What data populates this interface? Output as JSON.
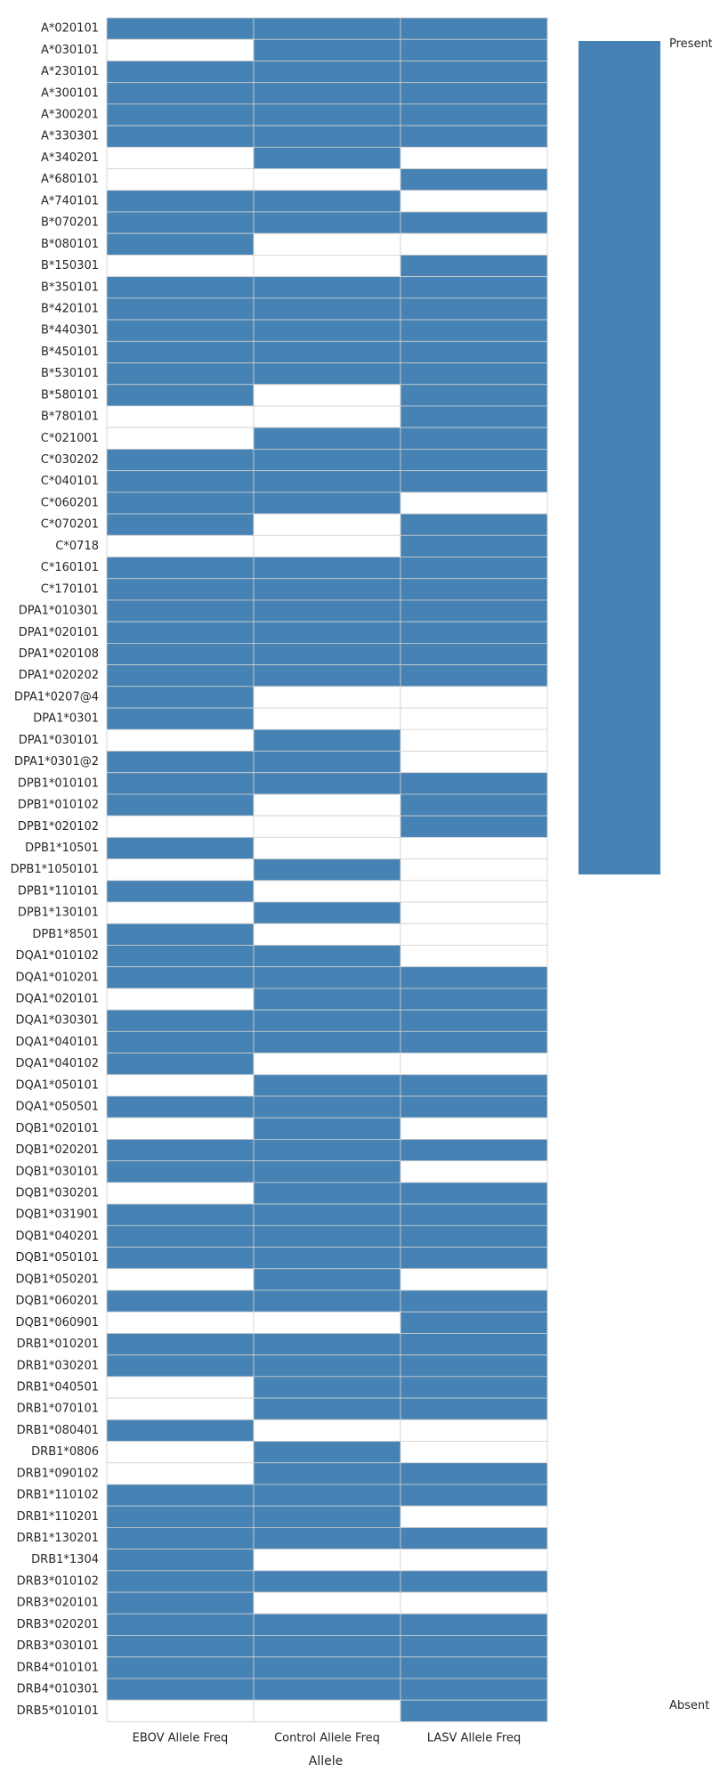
{
  "chart_data": {
    "type": "heatmap",
    "xlabel": "Allele",
    "columns": [
      "EBOV Allele Freq",
      "Control Allele Freq",
      "LASV Allele Freq"
    ],
    "legend": {
      "present_label": "Present",
      "absent_label": "Absent",
      "placement": "right"
    },
    "colors": {
      "present": "#4682b4",
      "absent": "#ffffff",
      "grid": "#d0d0d0"
    },
    "rows": [
      {
        "allele": "A*020101",
        "values": [
          1,
          1,
          1
        ]
      },
      {
        "allele": "A*030101",
        "values": [
          0,
          1,
          1
        ]
      },
      {
        "allele": "A*230101",
        "values": [
          1,
          1,
          1
        ]
      },
      {
        "allele": "A*300101",
        "values": [
          1,
          1,
          1
        ]
      },
      {
        "allele": "A*300201",
        "values": [
          1,
          1,
          1
        ]
      },
      {
        "allele": "A*330301",
        "values": [
          1,
          1,
          1
        ]
      },
      {
        "allele": "A*340201",
        "values": [
          0,
          1,
          0
        ]
      },
      {
        "allele": "A*680101",
        "values": [
          0,
          0,
          1
        ]
      },
      {
        "allele": "A*740101",
        "values": [
          1,
          1,
          0
        ]
      },
      {
        "allele": "B*070201",
        "values": [
          1,
          1,
          1
        ]
      },
      {
        "allele": "B*080101",
        "values": [
          1,
          0,
          0
        ]
      },
      {
        "allele": "B*150301",
        "values": [
          0,
          0,
          1
        ]
      },
      {
        "allele": "B*350101",
        "values": [
          1,
          1,
          1
        ]
      },
      {
        "allele": "B*420101",
        "values": [
          1,
          1,
          1
        ]
      },
      {
        "allele": "B*440301",
        "values": [
          1,
          1,
          1
        ]
      },
      {
        "allele": "B*450101",
        "values": [
          1,
          1,
          1
        ]
      },
      {
        "allele": "B*530101",
        "values": [
          1,
          1,
          1
        ]
      },
      {
        "allele": "B*580101",
        "values": [
          1,
          0,
          1
        ]
      },
      {
        "allele": "B*780101",
        "values": [
          0,
          0,
          1
        ]
      },
      {
        "allele": "C*021001",
        "values": [
          0,
          1,
          1
        ]
      },
      {
        "allele": "C*030202",
        "values": [
          1,
          1,
          1
        ]
      },
      {
        "allele": "C*040101",
        "values": [
          1,
          1,
          1
        ]
      },
      {
        "allele": "C*060201",
        "values": [
          1,
          1,
          0
        ]
      },
      {
        "allele": "C*070201",
        "values": [
          1,
          0,
          1
        ]
      },
      {
        "allele": "C*0718",
        "values": [
          0,
          0,
          1
        ]
      },
      {
        "allele": "C*160101",
        "values": [
          1,
          1,
          1
        ]
      },
      {
        "allele": "C*170101",
        "values": [
          1,
          1,
          1
        ]
      },
      {
        "allele": "DPA1*010301",
        "values": [
          1,
          1,
          1
        ]
      },
      {
        "allele": "DPA1*020101",
        "values": [
          1,
          1,
          1
        ]
      },
      {
        "allele": "DPA1*020108",
        "values": [
          1,
          1,
          1
        ]
      },
      {
        "allele": "DPA1*020202",
        "values": [
          1,
          1,
          1
        ]
      },
      {
        "allele": "DPA1*0207@4",
        "values": [
          1,
          0,
          0
        ]
      },
      {
        "allele": "DPA1*0301",
        "values": [
          1,
          0,
          0
        ]
      },
      {
        "allele": "DPA1*030101",
        "values": [
          0,
          1,
          0
        ]
      },
      {
        "allele": "DPA1*0301@2",
        "values": [
          1,
          1,
          0
        ]
      },
      {
        "allele": "DPB1*010101",
        "values": [
          1,
          1,
          1
        ]
      },
      {
        "allele": "DPB1*010102",
        "values": [
          1,
          0,
          1
        ]
      },
      {
        "allele": "DPB1*020102",
        "values": [
          0,
          0,
          1
        ]
      },
      {
        "allele": "DPB1*10501",
        "values": [
          1,
          0,
          0
        ]
      },
      {
        "allele": "DPB1*1050101",
        "values": [
          0,
          1,
          0
        ]
      },
      {
        "allele": "DPB1*110101",
        "values": [
          1,
          0,
          0
        ]
      },
      {
        "allele": "DPB1*130101",
        "values": [
          0,
          1,
          0
        ]
      },
      {
        "allele": "DPB1*8501",
        "values": [
          1,
          0,
          0
        ]
      },
      {
        "allele": "DQA1*010102",
        "values": [
          1,
          1,
          0
        ]
      },
      {
        "allele": "DQA1*010201",
        "values": [
          1,
          1,
          1
        ]
      },
      {
        "allele": "DQA1*020101",
        "values": [
          0,
          1,
          1
        ]
      },
      {
        "allele": "DQA1*030301",
        "values": [
          1,
          1,
          1
        ]
      },
      {
        "allele": "DQA1*040101",
        "values": [
          1,
          1,
          1
        ]
      },
      {
        "allele": "DQA1*040102",
        "values": [
          1,
          0,
          0
        ]
      },
      {
        "allele": "DQA1*050101",
        "values": [
          0,
          1,
          1
        ]
      },
      {
        "allele": "DQA1*050501",
        "values": [
          1,
          1,
          1
        ]
      },
      {
        "allele": "DQB1*020101",
        "values": [
          0,
          1,
          0
        ]
      },
      {
        "allele": "DQB1*020201",
        "values": [
          1,
          1,
          1
        ]
      },
      {
        "allele": "DQB1*030101",
        "values": [
          1,
          1,
          0
        ]
      },
      {
        "allele": "DQB1*030201",
        "values": [
          0,
          1,
          1
        ]
      },
      {
        "allele": "DQB1*031901",
        "values": [
          1,
          1,
          1
        ]
      },
      {
        "allele": "DQB1*040201",
        "values": [
          1,
          1,
          1
        ]
      },
      {
        "allele": "DQB1*050101",
        "values": [
          1,
          1,
          1
        ]
      },
      {
        "allele": "DQB1*050201",
        "values": [
          0,
          1,
          0
        ]
      },
      {
        "allele": "DQB1*060201",
        "values": [
          1,
          1,
          1
        ]
      },
      {
        "allele": "DQB1*060901",
        "values": [
          0,
          0,
          1
        ]
      },
      {
        "allele": "DRB1*010201",
        "values": [
          1,
          1,
          1
        ]
      },
      {
        "allele": "DRB1*030201",
        "values": [
          1,
          1,
          1
        ]
      },
      {
        "allele": "DRB1*040501",
        "values": [
          0,
          1,
          1
        ]
      },
      {
        "allele": "DRB1*070101",
        "values": [
          0,
          1,
          1
        ]
      },
      {
        "allele": "DRB1*080401",
        "values": [
          1,
          0,
          0
        ]
      },
      {
        "allele": "DRB1*0806",
        "values": [
          0,
          1,
          0
        ]
      },
      {
        "allele": "DRB1*090102",
        "values": [
          0,
          1,
          1
        ]
      },
      {
        "allele": "DRB1*110102",
        "values": [
          1,
          1,
          1
        ]
      },
      {
        "allele": "DRB1*110201",
        "values": [
          1,
          1,
          0
        ]
      },
      {
        "allele": "DRB1*130201",
        "values": [
          1,
          1,
          1
        ]
      },
      {
        "allele": "DRB1*1304",
        "values": [
          1,
          0,
          0
        ]
      },
      {
        "allele": "DRB3*010102",
        "values": [
          1,
          1,
          1
        ]
      },
      {
        "allele": "DRB3*020101",
        "values": [
          1,
          0,
          0
        ]
      },
      {
        "allele": "DRB3*020201",
        "values": [
          1,
          1,
          1
        ]
      },
      {
        "allele": "DRB3*030101",
        "values": [
          1,
          1,
          1
        ]
      },
      {
        "allele": "DRB4*010101",
        "values": [
          1,
          1,
          1
        ]
      },
      {
        "allele": "DRB4*010301",
        "values": [
          1,
          1,
          1
        ]
      },
      {
        "allele": "DRB5*010101",
        "values": [
          0,
          0,
          1
        ]
      }
    ]
  }
}
